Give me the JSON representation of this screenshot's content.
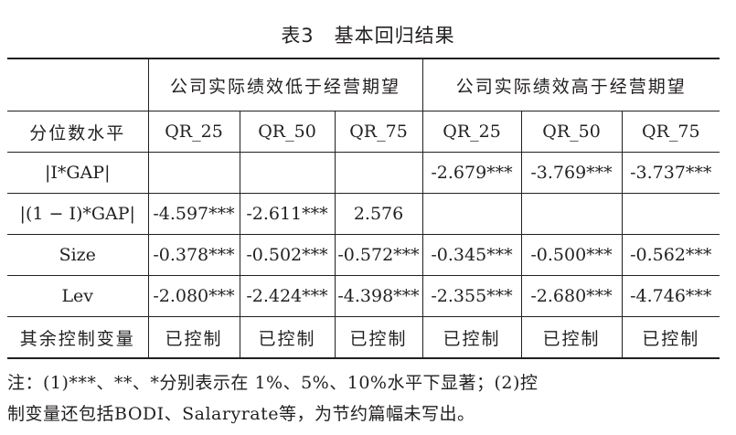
{
  "title": "表3　基本回归结果",
  "header": {
    "group_low": "公司实际绩效低于经营期望",
    "group_high": "公司实际绩效高于经营期望",
    "row_label": "分位数水平",
    "quantiles": [
      "QR_25",
      "QR_50",
      "QR_75",
      "QR_25",
      "QR_50",
      "QR_75"
    ]
  },
  "rows": [
    {
      "label": "|I*GAP|",
      "cells": [
        "",
        "",
        "",
        "-2.679***",
        "-3.769***",
        "-3.737***"
      ]
    },
    {
      "label": "|(1 − I)*GAP|",
      "cells": [
        "-4.597***",
        "-2.611***",
        "2.576",
        "",
        "",
        ""
      ]
    },
    {
      "label": "Size",
      "cells": [
        "-0.378***",
        "-0.502***",
        "-0.572***",
        "-0.345***",
        "-0.500***",
        "-0.562***"
      ]
    },
    {
      "label": "Lev",
      "cells": [
        "-2.080***",
        "-2.424***",
        "-4.398***",
        "-2.355***",
        "-2.680***",
        "-4.746***"
      ]
    },
    {
      "label": "其余控制变量",
      "cells": [
        "已控制",
        "已控制",
        "已控制",
        "已控制",
        "已控制",
        "已控制"
      ]
    }
  ],
  "note": {
    "line1": "注：(1)***、**、*分别表示在 1%、5%、10%水平下显著；(2)控",
    "line2": "制变量还包括BODI、Salaryrate等，为节约篇幅未写出。"
  }
}
